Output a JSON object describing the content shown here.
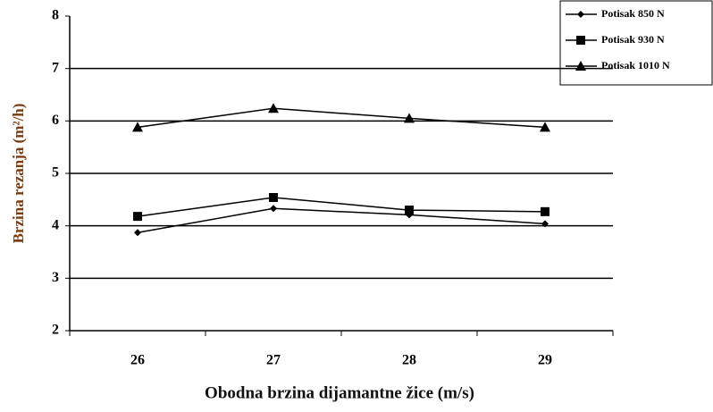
{
  "chart_data": {
    "type": "line",
    "x_label": "Obodna brzina dijamantne žice (m/s)",
    "y_label": "Brzina rezanja (m²/h)",
    "categories": [
      "26",
      "27",
      "28",
      "29"
    ],
    "series": [
      {
        "name": "Potisak 850 N",
        "color": "#000000",
        "marker": "diamond",
        "values": [
          3.87,
          4.33,
          4.21,
          4.04
        ]
      },
      {
        "name": "Potisak 930 N",
        "color": "#000000",
        "marker": "square",
        "values": [
          4.18,
          4.54,
          4.3,
          4.27
        ]
      },
      {
        "name": "Potisak 1010 N",
        "color": "#000000",
        "marker": "triangle",
        "values": [
          5.88,
          6.24,
          6.05,
          5.88
        ]
      }
    ],
    "ylim": [
      2,
      8
    ],
    "yticks": [
      2,
      3,
      4,
      5,
      6,
      7,
      8
    ],
    "grid": true,
    "legend": "upper right"
  }
}
